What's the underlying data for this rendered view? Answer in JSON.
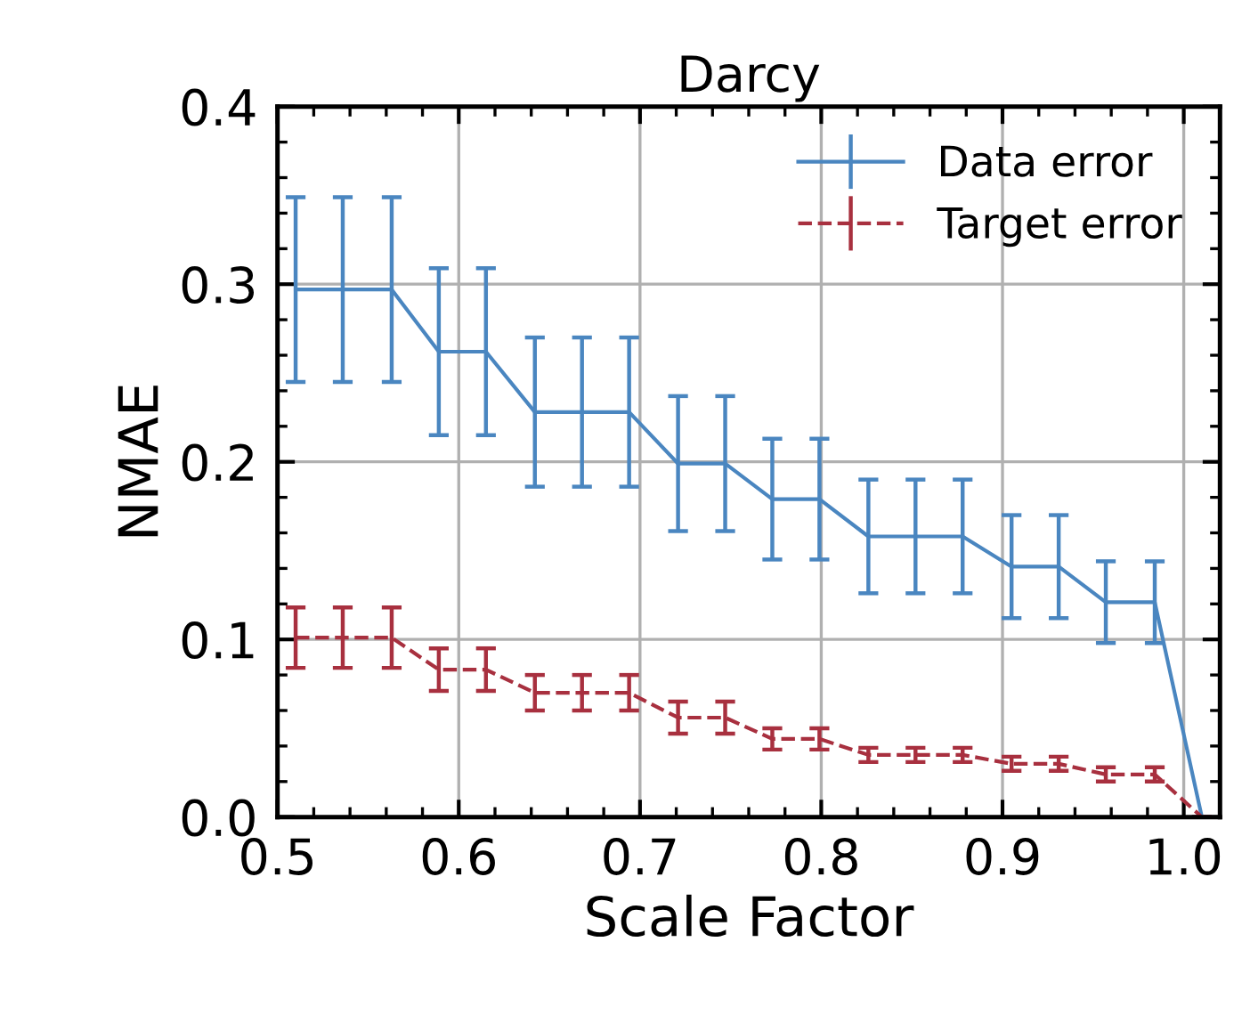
{
  "chart_data": {
    "type": "line",
    "title": "Darcy",
    "xlabel": "Scale Factor",
    "ylabel": "NMAE",
    "x": [
      0.51,
      0.536,
      0.563,
      0.589,
      0.615,
      0.642,
      0.668,
      0.694,
      0.721,
      0.747,
      0.773,
      0.799,
      0.826,
      0.852,
      0.878,
      0.905,
      0.931,
      0.957,
      0.984,
      1.01
    ],
    "series": [
      {
        "name": "Data error",
        "color": "#4a86c0",
        "line_style": "solid",
        "values": [
          0.297,
          0.297,
          0.297,
          0.262,
          0.262,
          0.228,
          0.228,
          0.228,
          0.199,
          0.199,
          0.179,
          0.179,
          0.158,
          0.158,
          0.158,
          0.141,
          0.141,
          0.121,
          0.121,
          0
        ],
        "errors": [
          0.052,
          0.052,
          0.052,
          0.047,
          0.047,
          0.042,
          0.042,
          0.042,
          0.038,
          0.038,
          0.034,
          0.034,
          0.032,
          0.032,
          0.032,
          0.029,
          0.029,
          0.023,
          0.023,
          null
        ]
      },
      {
        "name": "Target error",
        "color": "#a8303f",
        "line_style": "dashed",
        "values": [
          0.101,
          0.101,
          0.101,
          0.083,
          0.083,
          0.07,
          0.07,
          0.07,
          0.056,
          0.056,
          0.044,
          0.044,
          0.035,
          0.035,
          0.035,
          0.03,
          0.03,
          0.024,
          0.024,
          0
        ],
        "errors": [
          0.017,
          0.017,
          0.017,
          0.012,
          0.012,
          0.01,
          0.01,
          0.01,
          0.009,
          0.009,
          0.006,
          0.006,
          0.004,
          0.004,
          0.004,
          0.004,
          0.004,
          0.004,
          0.004,
          null
        ]
      }
    ],
    "xlim": [
      0.5,
      1.02
    ],
    "xticks": [
      0.5,
      0.6,
      0.7,
      0.8,
      0.9,
      {
        "value": 1.0,
        "label": "1.0"
      }
    ],
    "ylim": [
      0,
      0.4
    ],
    "yticks": [
      {
        "value": 0,
        "label": "0.0"
      },
      0.1,
      0.2,
      0.3,
      0.4
    ],
    "grid": true,
    "legend": "top right",
    "marker": "none"
  }
}
